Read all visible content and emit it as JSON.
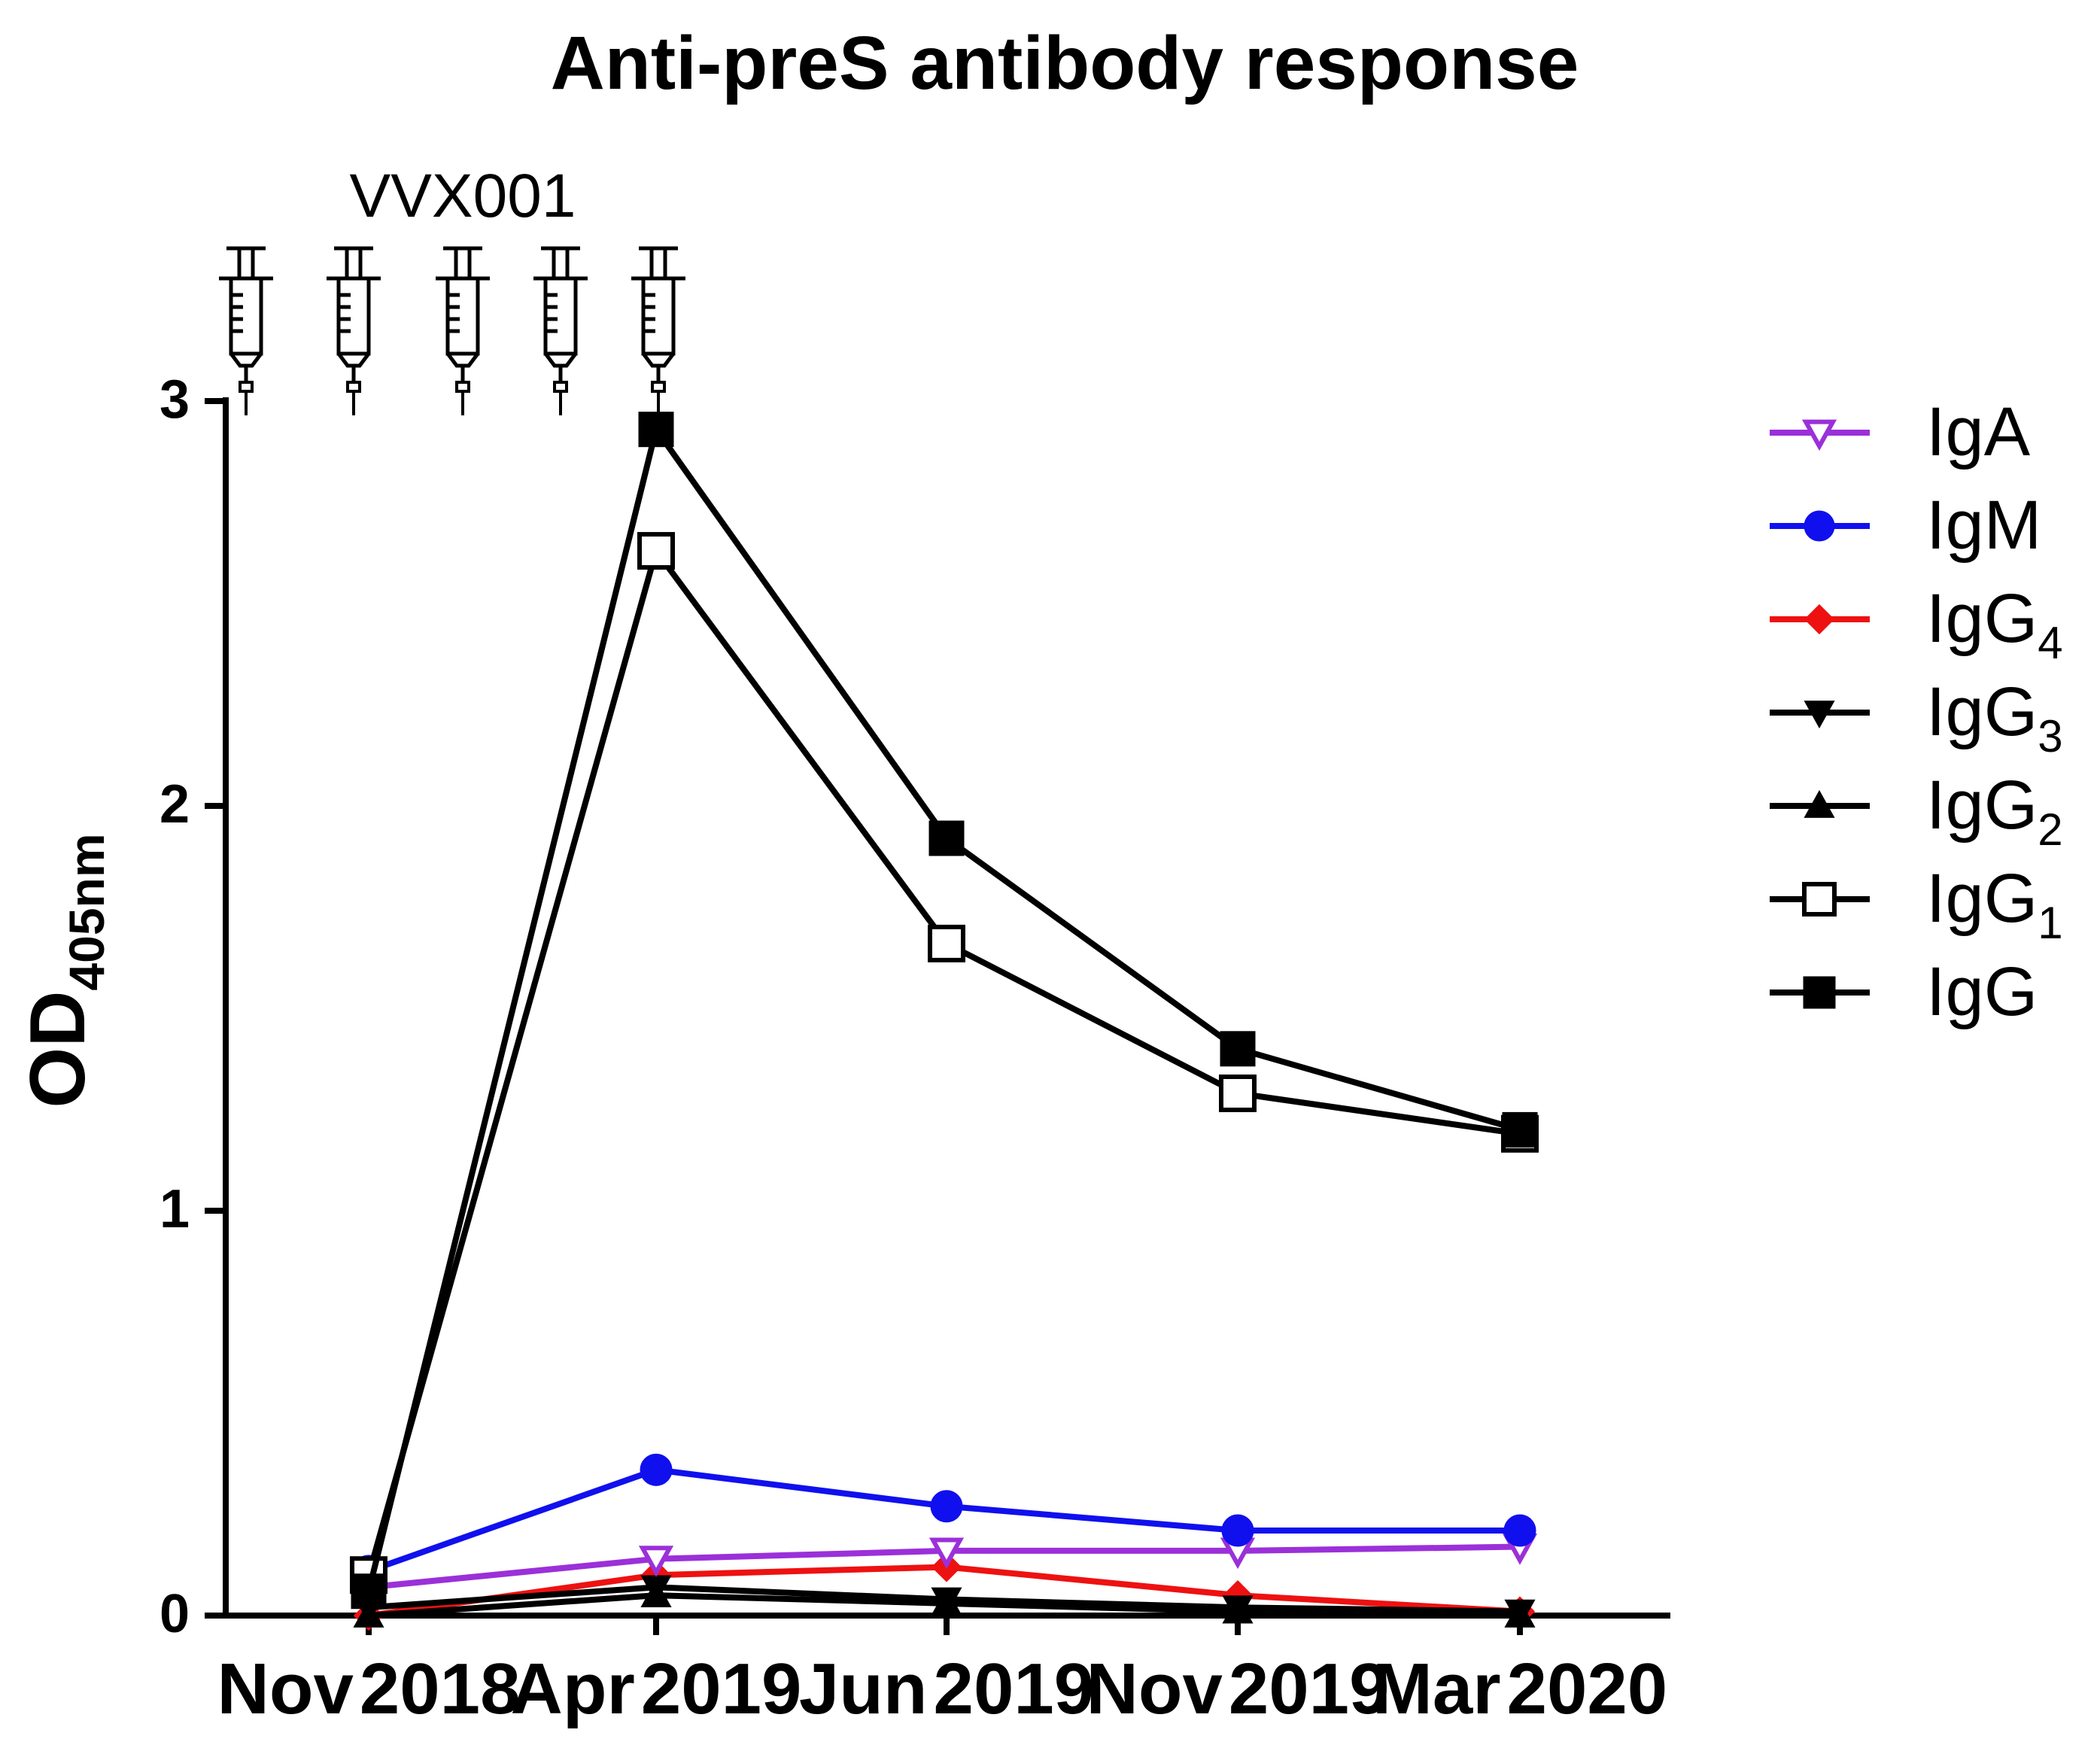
{
  "chart_data": {
    "type": "line",
    "title": "Anti-preS antibody response",
    "ylabel_main": "OD",
    "ylabel_sub": "405nm",
    "xlabel": "",
    "annotation": "VVX001",
    "x": [
      "Nov 2018",
      "Apr 2019",
      "Jun 2019",
      "Nov 2019",
      "Mar 2020"
    ],
    "x_tick_labels": [
      {
        "month": "Nov",
        "year": "2018"
      },
      {
        "month": "Apr",
        "year": "2019"
      },
      {
        "month": "Jun",
        "year": "2019"
      },
      {
        "month": "Nov",
        "year": "2019"
      },
      {
        "month": "Mar",
        "year": "2020"
      }
    ],
    "ylim": [
      0,
      3
    ],
    "yticks": [
      0,
      1,
      2,
      3
    ],
    "injection_count": 5,
    "injection_x": [
      0.45,
      0.82,
      1.2,
      1.55,
      1.0
    ],
    "legend_position": "right",
    "series": [
      {
        "name": "IgA",
        "sub": "",
        "color": "#9B30D9",
        "marker": "triangle-down-open",
        "values": [
          0.07,
          0.14,
          0.16,
          0.16,
          0.17
        ]
      },
      {
        "name": "IgM",
        "sub": "",
        "color": "#1010EE",
        "marker": "circle",
        "values": [
          0.11,
          0.36,
          0.27,
          0.21,
          0.21
        ]
      },
      {
        "name": "IgG",
        "sub": "4",
        "color": "#EE1111",
        "marker": "diamond",
        "values": [
          0.0,
          0.1,
          0.12,
          0.05,
          0.01
        ]
      },
      {
        "name": "IgG",
        "sub": "3",
        "color": "#000000",
        "marker": "triangle-down",
        "values": [
          0.02,
          0.07,
          0.04,
          0.02,
          0.01
        ]
      },
      {
        "name": "IgG",
        "sub": "2",
        "color": "#000000",
        "marker": "triangle-up",
        "values": [
          0.0,
          0.05,
          0.03,
          0.01,
          0.0
        ]
      },
      {
        "name": "IgG",
        "sub": "1",
        "color": "#000000",
        "marker": "square-open",
        "values": [
          0.1,
          2.63,
          1.66,
          1.29,
          1.19
        ]
      },
      {
        "name": "IgG",
        "sub": "",
        "color": "#000000",
        "marker": "square",
        "values": [
          0.06,
          2.93,
          1.92,
          1.4,
          1.2
        ]
      }
    ]
  }
}
